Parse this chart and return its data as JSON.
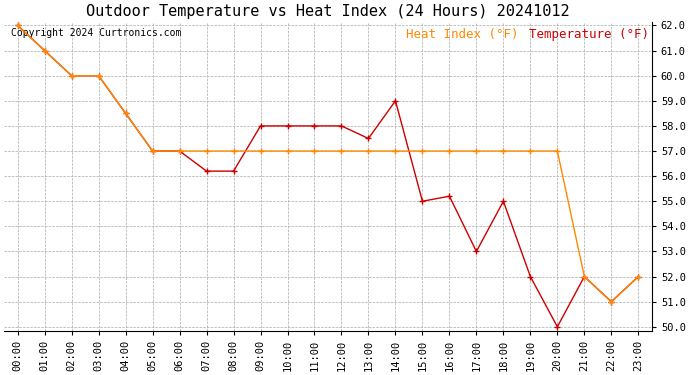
{
  "title": "Outdoor Temperature vs Heat Index (24 Hours) 20241012",
  "copyright": "Copyright 2024 Curtronics.com",
  "legend_heat_index": "Heat Index (°F)",
  "legend_temperature": "Temperature (°F)",
  "hours": [
    "00:00",
    "01:00",
    "02:00",
    "03:00",
    "04:00",
    "05:00",
    "06:00",
    "07:00",
    "08:00",
    "09:00",
    "10:00",
    "11:00",
    "12:00",
    "13:00",
    "14:00",
    "15:00",
    "16:00",
    "17:00",
    "18:00",
    "19:00",
    "20:00",
    "21:00",
    "22:00",
    "23:00"
  ],
  "temperature": [
    62.0,
    61.0,
    60.0,
    60.0,
    58.5,
    57.0,
    57.0,
    56.2,
    56.2,
    58.0,
    58.0,
    58.0,
    58.0,
    57.5,
    59.0,
    55.0,
    55.2,
    53.0,
    55.0,
    52.0,
    50.0,
    52.0,
    51.0,
    52.0
  ],
  "heat_index": [
    62.0,
    61.0,
    60.0,
    60.0,
    58.5,
    57.0,
    57.0,
    57.0,
    57.0,
    57.0,
    57.0,
    57.0,
    57.0,
    57.0,
    57.0,
    57.0,
    57.0,
    57.0,
    57.0,
    57.0,
    57.0,
    52.0,
    51.0,
    52.0
  ],
  "temp_color": "#cc0000",
  "heat_index_color": "#ff8800",
  "ylim_min": 50.0,
  "ylim_max": 62.0,
  "bg_color": "#ffffff",
  "grid_color": "#aaaaaa",
  "title_fontsize": 11,
  "tick_fontsize": 7.5,
  "copyright_fontsize": 7,
  "legend_fontsize": 9
}
